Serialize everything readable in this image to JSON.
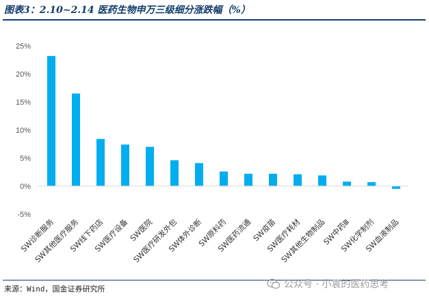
{
  "header": {
    "title": "图表3：2.10~2.14 医药生物申万三级细分涨跌幅（%）"
  },
  "footer": {
    "source": "来源：Wind，国金证券研究所",
    "watermark": "公众号 · 小袁的医药思考",
    "watermark_icon": "wechat-icon"
  },
  "colors": {
    "bar": "#00AEEF",
    "rule": "#123D6B",
    "axis_text": "#555555"
  },
  "chart_data": {
    "type": "bar",
    "title": "",
    "xlabel": "",
    "ylabel": "",
    "categories": [
      "SW诊断服务",
      "SW其他医疗服务",
      "SW线下药店",
      "SW医疗设备",
      "SW医院",
      "SW医疗研发外包",
      "SW体外诊断",
      "SW原料药",
      "SW医药流通",
      "SW疫苗",
      "SW医疗耗材",
      "SW其他生物制品",
      "SW中药Ⅲ",
      "SW化学制剂",
      "SW血液制品"
    ],
    "values": [
      23.2,
      16.5,
      8.4,
      7.4,
      7.0,
      4.6,
      4.1,
      2.6,
      2.2,
      2.2,
      2.1,
      1.9,
      0.8,
      0.7,
      -0.5
    ],
    "ylim": [
      -5,
      25
    ],
    "y_ticks": [
      -5,
      0,
      5,
      10,
      15,
      20,
      25
    ],
    "y_tick_labels": [
      "-5%",
      "0%",
      "5%",
      "10%",
      "15%",
      "20%",
      "25%"
    ],
    "grid": false,
    "legend": "none"
  }
}
